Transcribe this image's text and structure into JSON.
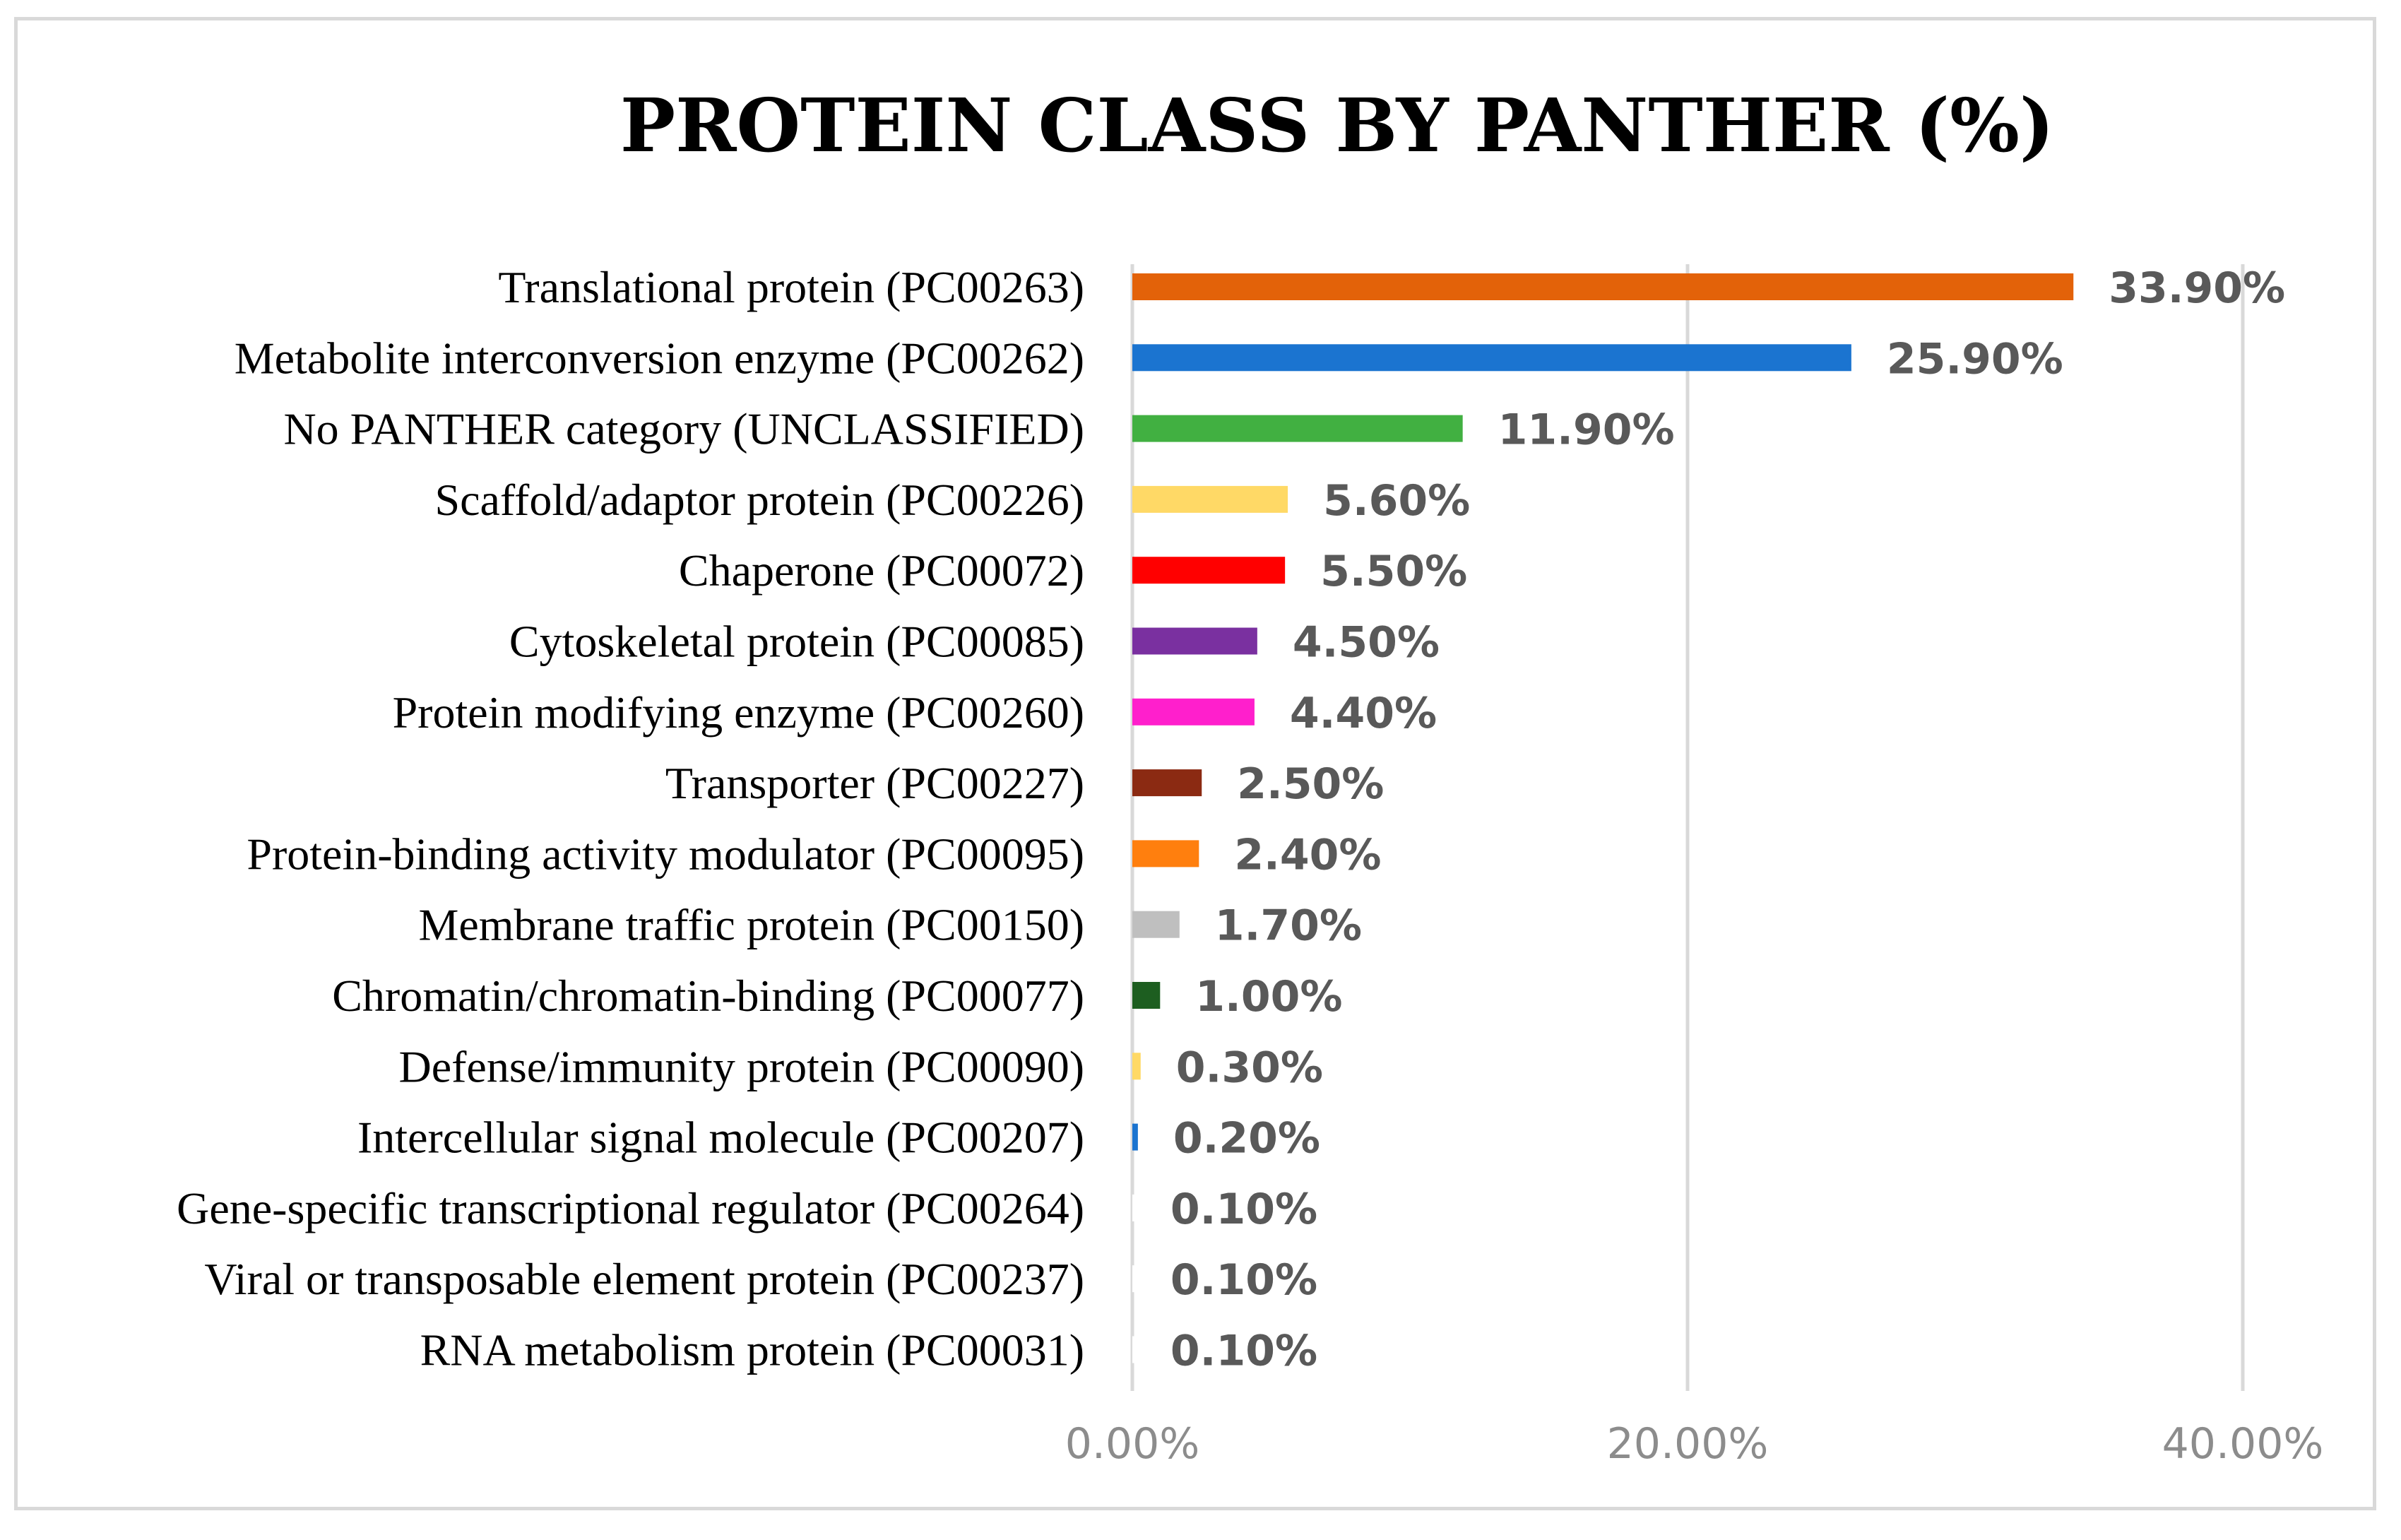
{
  "chart_data": {
    "type": "bar",
    "orientation": "horizontal",
    "title": "PROTEIN CLASS BY PANTHER (%)",
    "xlabel": "",
    "ylabel": "",
    "xlim": [
      0,
      40
    ],
    "x_ticks": [
      0,
      20,
      40
    ],
    "x_tick_labels": [
      "0.00%",
      "20.00%",
      "40.00%"
    ],
    "grid": true,
    "legend": "none",
    "categories": [
      "Translational protein (PC00263)",
      "Metabolite interconversion enzyme (PC00262)",
      "No PANTHER category (UNCLASSIFIED)",
      "Scaffold/adaptor protein (PC00226)",
      "Chaperone (PC00072)",
      "Cytoskeletal protein (PC00085)",
      "Protein modifying enzyme (PC00260)",
      "Transporter (PC00227)",
      "Protein-binding activity modulator (PC00095)",
      "Membrane traffic protein (PC00150)",
      "Chromatin/chromatin-binding (PC00077)",
      "Defense/immunity protein (PC00090)",
      "Intercellular signal molecule (PC00207)",
      "Gene-specific transcriptional regulator (PC00264)",
      "Viral or transposable element protein (PC00237)",
      "RNA metabolism protein (PC00031)"
    ],
    "values": [
      33.9,
      25.9,
      11.9,
      5.6,
      5.5,
      4.5,
      4.4,
      2.5,
      2.4,
      1.7,
      1.0,
      0.3,
      0.2,
      0.1,
      0.1,
      0.1
    ],
    "value_labels": [
      "33.90%",
      "25.90%",
      "11.90%",
      "5.60%",
      "5.50%",
      "4.50%",
      "4.40%",
      "2.50%",
      "2.40%",
      "1.70%",
      "1.00%",
      "0.30%",
      "0.20%",
      "0.10%",
      "0.10%",
      "0.10%"
    ],
    "colors": [
      "#e36209",
      "#1b74d0",
      "#41b041",
      "#ffd966",
      "#ff0000",
      "#7a30a0",
      "#ff1fcc",
      "#8b2a12",
      "#ff7f0e",
      "#bfbfbf",
      "#1d5e20",
      "#ffd966",
      "#1b74d0",
      "#ffffff",
      "#ffffff",
      "#ffffff"
    ]
  }
}
